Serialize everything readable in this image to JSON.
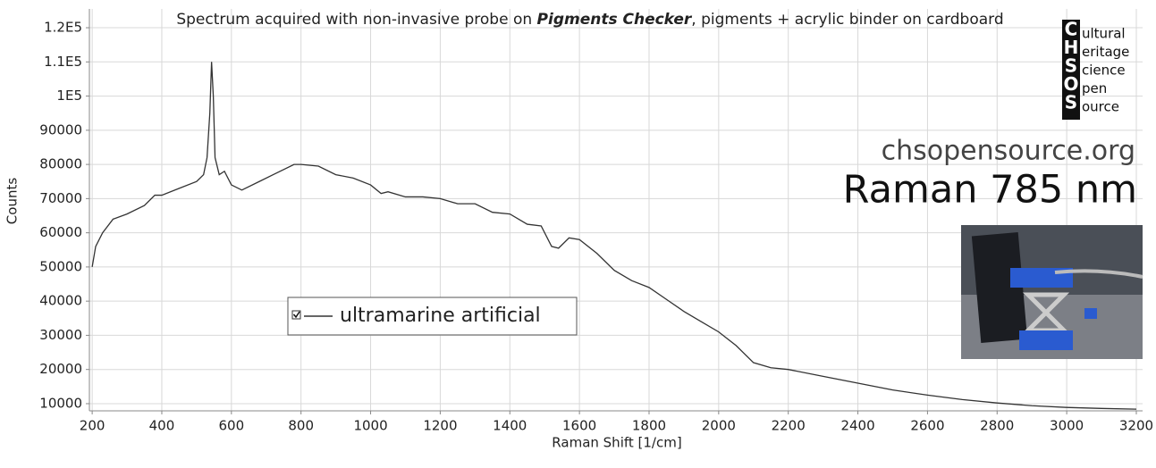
{
  "chart_data": {
    "type": "line",
    "title_parts": [
      "Spectrum acquired with non-invasive probe on ",
      "Pigments Checker",
      ", pigments + acrylic binder on cardboard"
    ],
    "xlabel": "Raman Shift [1/cm]",
    "ylabel": "Counts",
    "xlim": [
      192,
      3218
    ],
    "ylim": [
      7900,
      125500
    ],
    "xticks": [
      200,
      400,
      600,
      800,
      1000,
      1200,
      1400,
      1600,
      1800,
      2000,
      2200,
      2400,
      2600,
      2800,
      3000,
      3200
    ],
    "yticks": [
      10000,
      20000,
      30000,
      40000,
      50000,
      60000,
      70000,
      80000,
      90000,
      {
        "value": 100000,
        "label": "1E5"
      },
      {
        "value": 110000,
        "label": "1.1E5"
      },
      {
        "value": 120000,
        "label": "1.2E5"
      }
    ],
    "grid": true,
    "x": [
      200,
      210,
      230,
      260,
      300,
      350,
      380,
      400,
      450,
      500,
      520,
      530,
      538,
      543,
      548,
      553,
      565,
      580,
      600,
      630,
      680,
      720,
      780,
      800,
      850,
      900,
      950,
      1000,
      1030,
      1050,
      1100,
      1150,
      1200,
      1250,
      1300,
      1350,
      1400,
      1450,
      1490,
      1520,
      1540,
      1570,
      1600,
      1650,
      1700,
      1750,
      1800,
      1850,
      1900,
      1950,
      2000,
      2050,
      2100,
      2150,
      2200,
      2300,
      2400,
      2500,
      2600,
      2700,
      2800,
      2900,
      3000,
      3100,
      3200
    ],
    "series": [
      {
        "name": "ultramarine artificial",
        "color": "#333333",
        "values": [
          50000,
          56000,
          60000,
          64000,
          65500,
          68000,
          71000,
          71000,
          73000,
          75000,
          77000,
          82000,
          95000,
          110000,
          100000,
          82000,
          77000,
          78000,
          74000,
          72500,
          75000,
          77000,
          80000,
          80000,
          79500,
          77000,
          76000,
          74000,
          71500,
          72000,
          70500,
          70500,
          70000,
          68500,
          68500,
          66000,
          65500,
          62500,
          62000,
          56000,
          55500,
          58500,
          58000,
          54000,
          49000,
          46000,
          44000,
          40500,
          37000,
          34000,
          31000,
          27000,
          22000,
          20500,
          20000,
          18000,
          16000,
          14000,
          12500,
          11200,
          10200,
          9400,
          8900,
          8600,
          8400
        ]
      }
    ],
    "logo": {
      "letters": [
        "C",
        "H",
        "S",
        "O",
        "S"
      ],
      "words": [
        "ultural",
        "eritage",
        "cience",
        "pen",
        "ource"
      ]
    },
    "site": "chsopensource.org",
    "subtitle": "Raman 785 nm"
  }
}
